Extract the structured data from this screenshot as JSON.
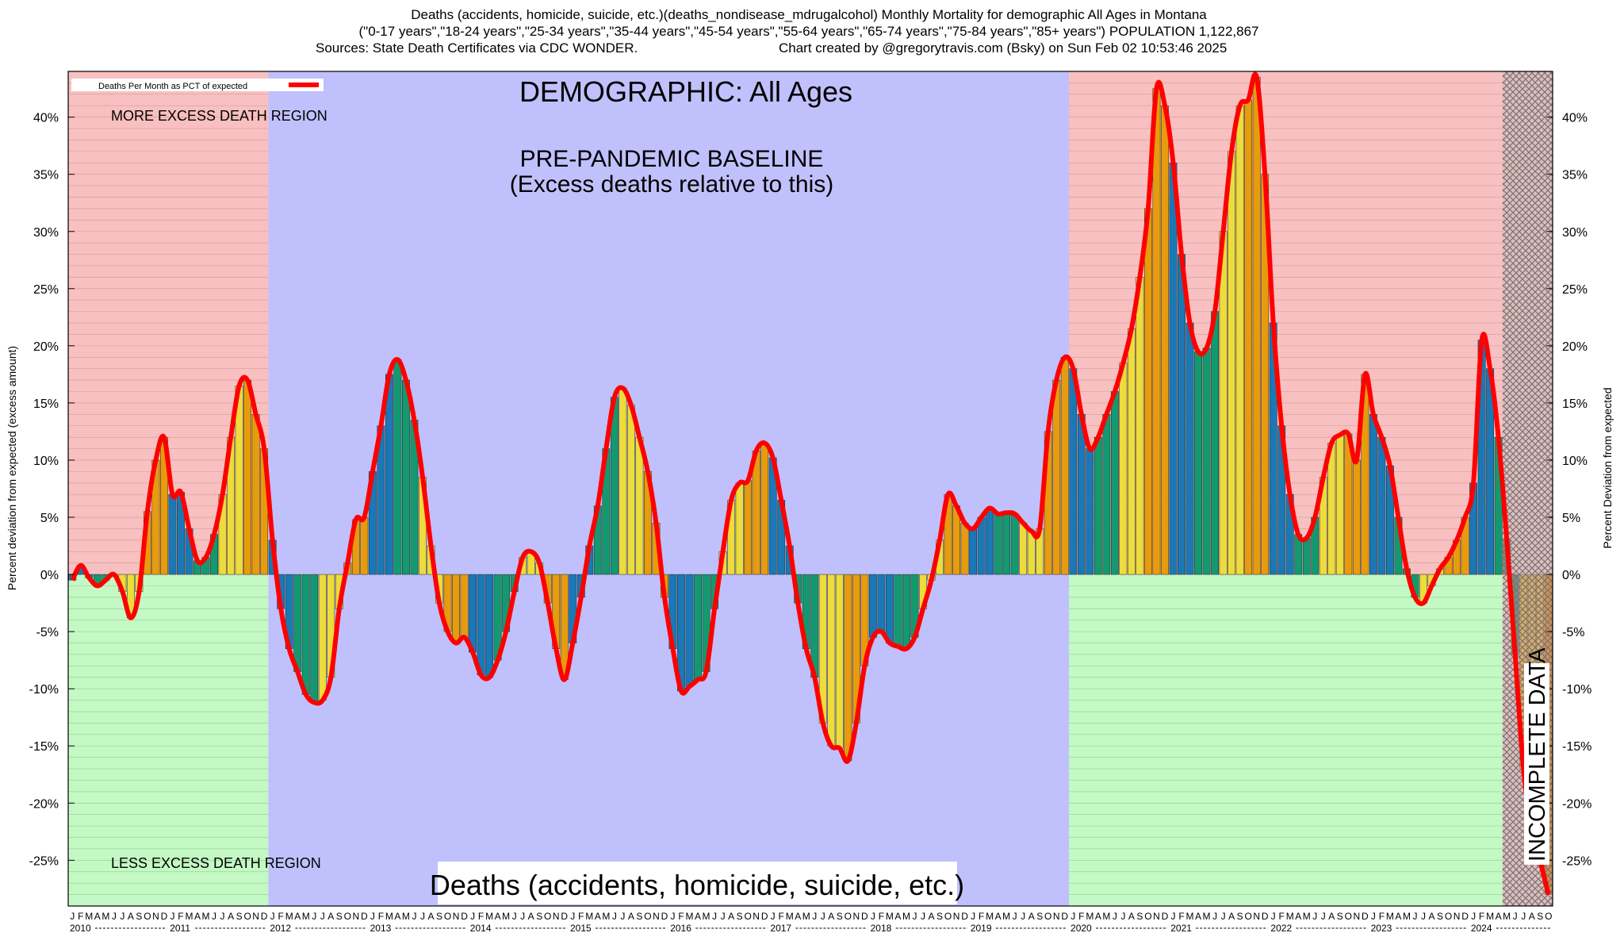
{
  "header": {
    "line1": "Deaths (accidents, homicide, suicide, etc.)(deaths_nondisease_mdrugalcohol) Monthly Mortality for demographic All Ages in Montana",
    "line2": "(\"0-17 years\",\"18-24 years\",\"25-34 years\",\"35-44 years\",\"45-54 years\",\"55-64 years\",\"65-74 years\",\"75-84 years\",\"85+ years\") POPULATION 1,122,867",
    "line3a": "Sources: State Death Certificates via CDC WONDER.",
    "line3b": "Chart created by @gregorytravis.com (Bsky) on Sun Feb 02 10:53:46 2025"
  },
  "labels": {
    "demographic": "DEMOGRAPHIC: All Ages",
    "baseline_title": "PRE-PANDEMIC BASELINE",
    "baseline_sub": "(Excess deaths relative to this)",
    "more_region": "MORE EXCESS DEATH REGION",
    "less_region": "LESS EXCESS DEATH REGION",
    "bottom_title": "Deaths (accidents, homicide, suicide, etc.)",
    "incomplete": "INCOMPLETE DATA",
    "legend": "Deaths Per Month as PCT of expected",
    "ylabel_left": "Percent deviation from expected (excess amount)",
    "ylabel_right": "Percent Deviation from expected"
  },
  "colors": {
    "more_region": "#f8c0c0",
    "less_region": "#c4f8c4",
    "baseline_region": "#c0c0fc",
    "line": "#ff0000",
    "bar_blue": "#1a78b4",
    "bar_green": "#13996f",
    "bar_yellow": "#ecdc3c",
    "bar_orange": "#e69c0c",
    "incomplete_hatch": "#b09090"
  },
  "chart_data": {
    "type": "bar",
    "title": "Deaths (accidents, homicide, suicide, etc.)(deaths_nondisease_mdrugalcohol) Monthly Mortality for demographic All Ages in Montana",
    "ylabel": "Percent deviation from expected (excess amount)",
    "y2label": "Percent Deviation from expected",
    "ylim": [
      -29,
      44
    ],
    "yticks": [
      -25,
      -20,
      -15,
      -10,
      -5,
      0,
      5,
      10,
      15,
      20,
      25,
      30,
      35,
      40
    ],
    "ytick_suffix": "%",
    "grid": "horizontal minor lines",
    "legend_position": "top-left",
    "month_letters": [
      "J",
      "F",
      "M",
      "A",
      "M",
      "J",
      "J",
      "A",
      "S",
      "O",
      "N",
      "D"
    ],
    "years": [
      "2010",
      "2011",
      "2012",
      "2013",
      "2014",
      "2015",
      "2016",
      "2017",
      "2018",
      "2019",
      "2020",
      "2021",
      "2022",
      "2023",
      "2024"
    ],
    "last_year_months": 10,
    "baseline_years": [
      "2012",
      "2019"
    ],
    "incomplete_from_index": 172,
    "series": [
      {
        "name": "Deaths Per Month as PCT of expected",
        "start": "2010-01",
        "values": [
          -0.5,
          0.8,
          -0.3,
          -1.0,
          -0.5,
          0.0,
          -1.5,
          -3.8,
          -1.5,
          5.5,
          10.0,
          12.0,
          7.0,
          7.2,
          4.0,
          1.2,
          1.5,
          3.5,
          7.0,
          12.0,
          16.5,
          17.0,
          14.0,
          11.0,
          3.0,
          -3.0,
          -6.5,
          -8.5,
          -10.5,
          -11.2,
          -11.0,
          -9.0,
          -3.0,
          1.0,
          4.8,
          5.0,
          9.0,
          13.0,
          17.5,
          18.8,
          17.0,
          13.5,
          8.5,
          2.5,
          -2.5,
          -5.0,
          -6.0,
          -5.5,
          -6.8,
          -8.8,
          -9.0,
          -7.5,
          -5.0,
          -1.5,
          1.5,
          2.0,
          1.0,
          -2.5,
          -6.5,
          -9.2,
          -6.0,
          -2.0,
          2.5,
          6.0,
          11.0,
          15.5,
          16.3,
          14.8,
          12.0,
          9.0,
          4.5,
          -2.0,
          -6.5,
          -10.2,
          -9.8,
          -9.2,
          -8.5,
          -3.0,
          2.0,
          6.5,
          8.0,
          8.2,
          10.8,
          11.5,
          10.2,
          6.5,
          2.5,
          -2.5,
          -6.5,
          -9.0,
          -13.0,
          -15.0,
          -15.2,
          -16.3,
          -13.0,
          -8.0,
          -5.5,
          -5.0,
          -6.0,
          -6.3,
          -6.5,
          -5.5,
          -3.0,
          -0.5,
          3.0,
          7.0,
          6.0,
          4.5,
          4.0,
          5.0,
          5.8,
          5.3,
          5.4,
          5.3,
          4.5,
          3.8,
          4.0,
          12.5,
          17.0,
          19.0,
          18.0,
          14.0,
          11.0,
          12.0,
          14.0,
          16.0,
          18.5,
          21.5,
          26.0,
          32.0,
          42.5,
          41.0,
          36.0,
          28.0,
          22.0,
          19.5,
          19.8,
          23.0,
          30.0,
          37.0,
          41.0,
          41.5,
          43.5,
          35.0,
          22.0,
          13.0,
          7.0,
          3.5,
          3.2,
          5.0,
          8.5,
          11.5,
          12.2,
          12.3,
          10.0,
          17.5,
          14.0,
          12.0,
          9.5,
          5.0,
          0.5,
          -2.0,
          -2.5,
          -1.0,
          0.5,
          1.5,
          3.0,
          5.0,
          8.0,
          20.5,
          18.0,
          12.0,
          3.0,
          -7.0,
          -17.0,
          -22.0,
          -25.0,
          -28.0
        ]
      }
    ]
  }
}
